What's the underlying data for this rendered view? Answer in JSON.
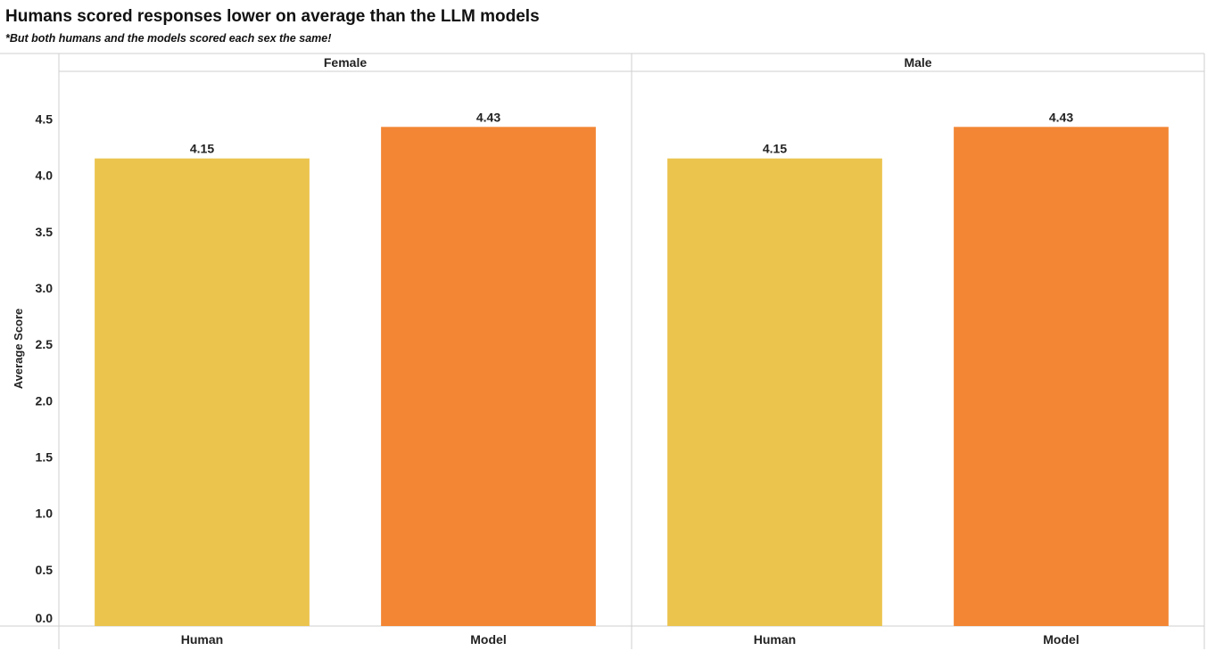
{
  "chart_data": {
    "type": "bar",
    "title": "Humans scored responses lower on average than the LLM models",
    "subtitle": "*But both humans and the models scored each sex the same!",
    "ylabel": "Average Score",
    "xlabel": "",
    "ylim": [
      0,
      4.8
    ],
    "y_ticks": [
      "0.0",
      "0.5",
      "1.0",
      "1.5",
      "2.0",
      "2.5",
      "3.0",
      "3.5",
      "4.0",
      "4.5"
    ],
    "grid": false,
    "panels": [
      {
        "name": "Female",
        "categories": [
          "Human",
          "Model"
        ],
        "values": [
          4.15,
          4.43
        ],
        "labels": [
          "4.15",
          "4.43"
        ]
      },
      {
        "name": "Male",
        "categories": [
          "Human",
          "Model"
        ],
        "values": [
          4.15,
          4.43
        ],
        "labels": [
          "4.15",
          "4.43"
        ]
      }
    ],
    "colors": {
      "Human": "#EBC44E",
      "Model": "#F28634"
    }
  }
}
